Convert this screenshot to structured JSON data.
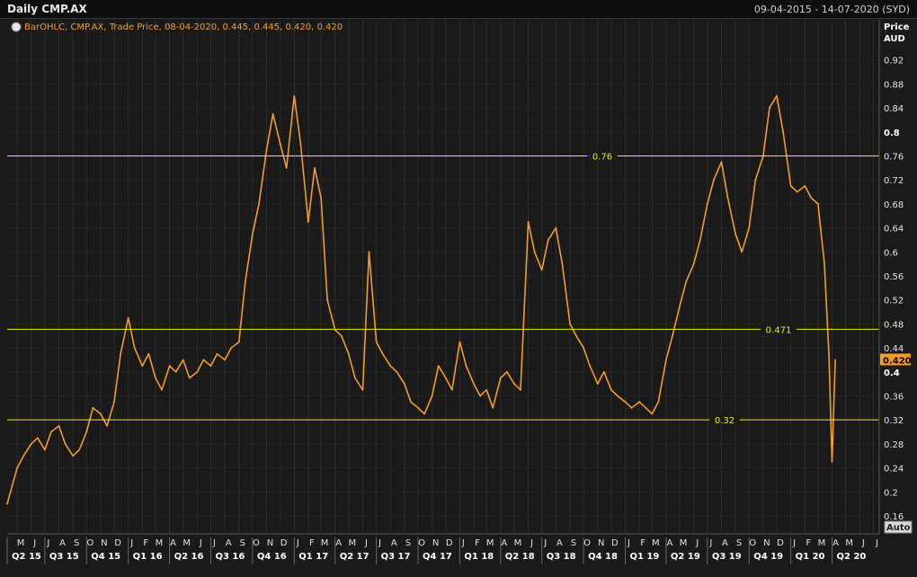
{
  "header": {
    "title": "Daily CMP.AX",
    "date_range": "09-04-2015 - 14-07-2020 (SYD)"
  },
  "legend": {
    "text": "BarOHLC, CMP.AX, Trade Price, 08-04-2020, 0.445, 0.445, 0.420, 0.420",
    "icon": "chart-settings-icon"
  },
  "axis": {
    "y_title": "Price",
    "y_unit": "AUD",
    "auto_label": "Auto",
    "last_value_label": "0.420"
  },
  "colors": {
    "series": "#f39c2b",
    "hline": "#f0f000",
    "background": "#1a1a1a",
    "grid": "#3a3a3a"
  },
  "chart_data": {
    "type": "line",
    "ylim": [
      0.13,
      0.96
    ],
    "xlim": [
      "2015-04-09",
      "2020-07-14"
    ],
    "y_ticks": [
      0.16,
      0.2,
      0.24,
      0.28,
      0.32,
      0.36,
      0.4,
      0.44,
      0.48,
      0.52,
      0.56,
      0.6,
      0.64,
      0.68,
      0.72,
      0.76,
      0.8,
      0.84,
      0.88,
      0.92
    ],
    "y_ticks_bold": [
      0.4,
      0.8
    ],
    "months": [
      "M",
      "J",
      "J",
      "A",
      "S",
      "O",
      "N",
      "D",
      "J",
      "F",
      "M",
      "A",
      "M",
      "J",
      "J",
      "A",
      "S",
      "O",
      "N",
      "D",
      "J",
      "F",
      "M",
      "A",
      "M",
      "J",
      "J",
      "A",
      "S",
      "O",
      "N",
      "D",
      "J",
      "F",
      "M",
      "A",
      "M",
      "J",
      "J",
      "A",
      "S",
      "O",
      "N",
      "D",
      "J",
      "F",
      "M",
      "A",
      "M",
      "J",
      "J",
      "A",
      "S",
      "O",
      "N",
      "D",
      "J",
      "F",
      "M",
      "A",
      "M",
      "J",
      "J"
    ],
    "quarters": [
      "Q2 15",
      "Q3 15",
      "Q4 15",
      "Q1 16",
      "Q2 16",
      "Q3 16",
      "Q4 16",
      "Q1 17",
      "Q2 17",
      "Q3 17",
      "Q4 17",
      "Q1 18",
      "Q2 18",
      "Q3 18",
      "Q4 18",
      "Q1 19",
      "Q2 19",
      "Q3 19",
      "Q4 19",
      "Q1 20",
      "Q2 20"
    ],
    "grid": true,
    "hlines": [
      {
        "label": "0.76",
        "value": 0.76
      },
      {
        "label": "0.471",
        "value": 0.471
      },
      {
        "label": "0.32",
        "value": 0.32
      }
    ],
    "last_value": 0.42,
    "series": [
      {
        "x": [
          "2015-04-09",
          "2015-04-20",
          "2015-05-01",
          "2015-05-15",
          "2015-06-01",
          "2015-06-15",
          "2015-07-01",
          "2015-07-15",
          "2015-08-01",
          "2015-08-15",
          "2015-09-01",
          "2015-09-15",
          "2015-10-01",
          "2015-10-15",
          "2015-11-01",
          "2015-11-15",
          "2015-12-01",
          "2015-12-15",
          "2016-01-01",
          "2016-01-15",
          "2016-02-01",
          "2016-02-15",
          "2016-03-01",
          "2016-03-15",
          "2016-04-01",
          "2016-04-15",
          "2016-05-01",
          "2016-05-15",
          "2016-06-01",
          "2016-06-15",
          "2016-07-01",
          "2016-07-15",
          "2016-08-01",
          "2016-08-15",
          "2016-09-01",
          "2016-09-15",
          "2016-10-01",
          "2016-10-15",
          "2016-11-01",
          "2016-11-15",
          "2016-12-01",
          "2016-12-15",
          "2017-01-01",
          "2017-01-15",
          "2017-02-01",
          "2017-02-15",
          "2017-03-01",
          "2017-03-15",
          "2017-04-01",
          "2017-04-15",
          "2017-05-01",
          "2017-05-15",
          "2017-06-01",
          "2017-06-15",
          "2017-07-01",
          "2017-07-15",
          "2017-08-01",
          "2017-08-15",
          "2017-09-01",
          "2017-09-15",
          "2017-10-01",
          "2017-10-15",
          "2017-11-01",
          "2017-11-15",
          "2017-12-01",
          "2017-12-15",
          "2018-01-01",
          "2018-01-15",
          "2018-02-01",
          "2018-02-15",
          "2018-03-01",
          "2018-03-15",
          "2018-04-01",
          "2018-04-15",
          "2018-05-01",
          "2018-05-15",
          "2018-06-01",
          "2018-06-15",
          "2018-07-01",
          "2018-07-15",
          "2018-08-01",
          "2018-08-15",
          "2018-09-01",
          "2018-09-15",
          "2018-10-01",
          "2018-10-15",
          "2018-11-01",
          "2018-11-15",
          "2018-12-01",
          "2018-12-15",
          "2019-01-01",
          "2019-01-15",
          "2019-02-01",
          "2019-02-15",
          "2019-03-01",
          "2019-03-15",
          "2019-04-01",
          "2019-04-15",
          "2019-05-01",
          "2019-05-15",
          "2019-06-01",
          "2019-06-15",
          "2019-07-01",
          "2019-07-15",
          "2019-08-01",
          "2019-08-15",
          "2019-09-01",
          "2019-09-15",
          "2019-10-01",
          "2019-10-15",
          "2019-11-01",
          "2019-11-15",
          "2019-12-01",
          "2019-12-15",
          "2020-01-01",
          "2020-01-15",
          "2020-02-01",
          "2020-02-15",
          "2020-03-01",
          "2020-03-15",
          "2020-03-25",
          "2020-04-01",
          "2020-04-08"
        ],
        "values": [
          0.18,
          0.21,
          0.24,
          0.26,
          0.28,
          0.29,
          0.27,
          0.3,
          0.31,
          0.28,
          0.26,
          0.27,
          0.3,
          0.34,
          0.33,
          0.31,
          0.35,
          0.43,
          0.49,
          0.44,
          0.41,
          0.43,
          0.39,
          0.37,
          0.41,
          0.4,
          0.42,
          0.39,
          0.4,
          0.42,
          0.41,
          0.43,
          0.42,
          0.44,
          0.45,
          0.55,
          0.63,
          0.68,
          0.77,
          0.83,
          0.78,
          0.74,
          0.86,
          0.78,
          0.65,
          0.74,
          0.69,
          0.52,
          0.47,
          0.46,
          0.43,
          0.39,
          0.37,
          0.6,
          0.45,
          0.43,
          0.41,
          0.4,
          0.38,
          0.35,
          0.34,
          0.33,
          0.36,
          0.41,
          0.39,
          0.37,
          0.45,
          0.41,
          0.38,
          0.36,
          0.37,
          0.34,
          0.39,
          0.4,
          0.38,
          0.37,
          0.65,
          0.6,
          0.57,
          0.62,
          0.64,
          0.58,
          0.48,
          0.46,
          0.44,
          0.41,
          0.38,
          0.4,
          0.37,
          0.36,
          0.35,
          0.34,
          0.35,
          0.34,
          0.33,
          0.35,
          0.42,
          0.46,
          0.51,
          0.55,
          0.58,
          0.62,
          0.68,
          0.72,
          0.75,
          0.69,
          0.63,
          0.6,
          0.64,
          0.72,
          0.76,
          0.84,
          0.86,
          0.8,
          0.71,
          0.7,
          0.71,
          0.69,
          0.68,
          0.58,
          0.43,
          0.25,
          0.42
        ]
      }
    ]
  }
}
